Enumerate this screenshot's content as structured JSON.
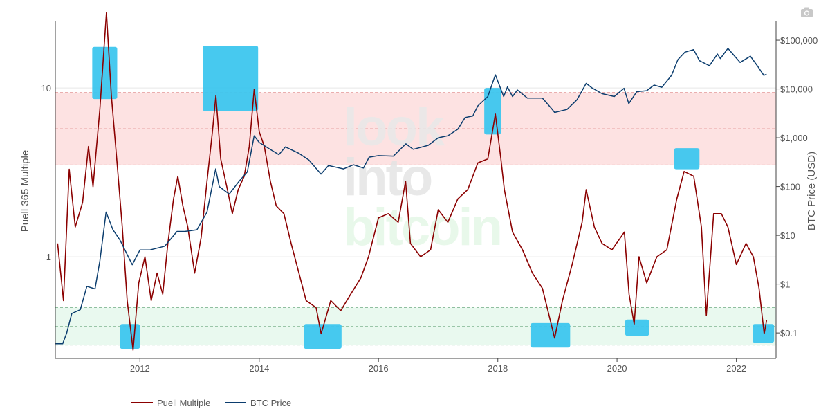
{
  "chart_data": {
    "type": "line",
    "title": "",
    "xlabel": "",
    "x_range": [
      "2010-08-01",
      "2022-09-01"
    ],
    "x_tick_labels": [
      "2012",
      "2014",
      "2016",
      "2018",
      "2020",
      "2022"
    ],
    "y_left": {
      "label": "Puell 365 Multiple",
      "scale": "log",
      "range": [
        0.25,
        25
      ],
      "tick_labels": [
        "1",
        "10"
      ],
      "tick_values": [
        1,
        10
      ]
    },
    "y_right": {
      "label": "BTC Price (USD)",
      "scale": "log",
      "range": [
        0.03,
        250000
      ],
      "tick_labels": [
        "$0.1",
        "$1",
        "$10",
        "$100",
        "$1,000",
        "$10,000",
        "$100,000"
      ],
      "tick_values": [
        0.1,
        1,
        10,
        100,
        1000,
        10000,
        100000
      ]
    },
    "bands": [
      {
        "name": "overbought",
        "y_from": 3.5,
        "y_to": 9.4,
        "color": "#fde2e2",
        "line_color": "#e7a3a3"
      },
      {
        "name": "oversold",
        "y_from": 0.3,
        "y_to": 0.5,
        "color": "#e9f9ef",
        "line_color": "#8fbf9f"
      }
    ],
    "series": [
      {
        "name": "Puell Multiple",
        "axis": "left",
        "color": "#8b0000",
        "points": [
          [
            "2010-08-15",
            1.2
          ],
          [
            "2010-09-20",
            0.55
          ],
          [
            "2010-10-25",
            3.3
          ],
          [
            "2010-12-01",
            1.5
          ],
          [
            "2011-01-15",
            2.1
          ],
          [
            "2011-02-20",
            4.5
          ],
          [
            "2011-03-20",
            2.6
          ],
          [
            "2011-05-01",
            7.5
          ],
          [
            "2011-06-10",
            28.0
          ],
          [
            "2011-07-10",
            9.0
          ],
          [
            "2011-08-15",
            3.5
          ],
          [
            "2011-09-15",
            1.5
          ],
          [
            "2011-10-15",
            0.55
          ],
          [
            "2011-11-20",
            0.28
          ],
          [
            "2011-12-25",
            0.7
          ],
          [
            "2012-02-01",
            1.0
          ],
          [
            "2012-03-10",
            0.55
          ],
          [
            "2012-04-15",
            0.8
          ],
          [
            "2012-05-20",
            0.6
          ],
          [
            "2012-06-20",
            1.2
          ],
          [
            "2012-07-25",
            2.2
          ],
          [
            "2012-08-20",
            3.0
          ],
          [
            "2012-09-20",
            2.0
          ],
          [
            "2012-10-20",
            1.5
          ],
          [
            "2012-12-01",
            0.8
          ],
          [
            "2013-01-10",
            1.3
          ],
          [
            "2013-02-15",
            2.8
          ],
          [
            "2013-03-20",
            5.5
          ],
          [
            "2013-04-10",
            9.0
          ],
          [
            "2013-05-10",
            3.8
          ],
          [
            "2013-06-20",
            2.5
          ],
          [
            "2013-07-20",
            1.8
          ],
          [
            "2013-08-25",
            2.5
          ],
          [
            "2013-10-01",
            3.0
          ],
          [
            "2013-11-01",
            4.5
          ],
          [
            "2013-12-01",
            9.8
          ],
          [
            "2014-01-01",
            5.5
          ],
          [
            "2014-02-01",
            4.5
          ],
          [
            "2014-03-10",
            2.8
          ],
          [
            "2014-04-15",
            2.0
          ],
          [
            "2014-06-01",
            1.8
          ],
          [
            "2014-07-15",
            1.2
          ],
          [
            "2014-09-01",
            0.8
          ],
          [
            "2014-10-15",
            0.55
          ],
          [
            "2014-12-15",
            0.5
          ],
          [
            "2015-01-15",
            0.35
          ],
          [
            "2015-03-15",
            0.55
          ],
          [
            "2015-05-15",
            0.48
          ],
          [
            "2015-07-15",
            0.6
          ],
          [
            "2015-09-15",
            0.75
          ],
          [
            "2015-11-01",
            1.0
          ],
          [
            "2016-01-01",
            1.7
          ],
          [
            "2016-03-01",
            1.8
          ],
          [
            "2016-05-01",
            1.6
          ],
          [
            "2016-06-15",
            2.8
          ],
          [
            "2016-07-15",
            1.2
          ],
          [
            "2016-09-15",
            1.0
          ],
          [
            "2016-11-15",
            1.1
          ],
          [
            "2017-01-01",
            1.9
          ],
          [
            "2017-03-01",
            1.6
          ],
          [
            "2017-05-01",
            2.2
          ],
          [
            "2017-07-01",
            2.5
          ],
          [
            "2017-09-01",
            3.6
          ],
          [
            "2017-11-01",
            3.8
          ],
          [
            "2017-12-17",
            7.0
          ],
          [
            "2018-01-20",
            3.8
          ],
          [
            "2018-02-10",
            2.5
          ],
          [
            "2018-04-01",
            1.4
          ],
          [
            "2018-06-01",
            1.1
          ],
          [
            "2018-08-01",
            0.8
          ],
          [
            "2018-10-01",
            0.65
          ],
          [
            "2018-12-15",
            0.33
          ],
          [
            "2019-02-01",
            0.55
          ],
          [
            "2019-04-01",
            0.9
          ],
          [
            "2019-06-01",
            1.6
          ],
          [
            "2019-06-26",
            2.5
          ],
          [
            "2019-08-15",
            1.5
          ],
          [
            "2019-10-01",
            1.2
          ],
          [
            "2019-12-01",
            1.1
          ],
          [
            "2020-02-15",
            1.4
          ],
          [
            "2020-03-15",
            0.6
          ],
          [
            "2020-04-15",
            0.4
          ],
          [
            "2020-05-15",
            1.0
          ],
          [
            "2020-07-01",
            0.7
          ],
          [
            "2020-09-01",
            1.0
          ],
          [
            "2020-11-01",
            1.1
          ],
          [
            "2021-01-01",
            2.2
          ],
          [
            "2021-02-15",
            3.2
          ],
          [
            "2021-04-15",
            3.0
          ],
          [
            "2021-06-01",
            1.5
          ],
          [
            "2021-07-01",
            0.45
          ],
          [
            "2021-08-15",
            1.8
          ],
          [
            "2021-10-01",
            1.8
          ],
          [
            "2021-11-10",
            1.5
          ],
          [
            "2022-01-01",
            0.9
          ],
          [
            "2022-03-01",
            1.2
          ],
          [
            "2022-04-15",
            1.0
          ],
          [
            "2022-05-20",
            0.65
          ],
          [
            "2022-06-20",
            0.35
          ],
          [
            "2022-07-05",
            0.42
          ]
        ]
      },
      {
        "name": "BTC Price",
        "axis": "right",
        "color": "#0b3d6e",
        "points": [
          [
            "2010-08-01",
            0.06
          ],
          [
            "2010-09-15",
            0.06
          ],
          [
            "2010-10-10",
            0.1
          ],
          [
            "2010-11-10",
            0.25
          ],
          [
            "2011-01-01",
            0.3
          ],
          [
            "2011-02-10",
            0.9
          ],
          [
            "2011-04-01",
            0.8
          ],
          [
            "2011-05-01",
            3.0
          ],
          [
            "2011-06-08",
            30.0
          ],
          [
            "2011-07-20",
            13.0
          ],
          [
            "2011-09-01",
            8.0
          ],
          [
            "2011-11-15",
            2.5
          ],
          [
            "2012-01-01",
            5.0
          ],
          [
            "2012-03-01",
            5.0
          ],
          [
            "2012-06-01",
            6.0
          ],
          [
            "2012-08-15",
            12.0
          ],
          [
            "2012-10-01",
            12.0
          ],
          [
            "2012-12-15",
            13.0
          ],
          [
            "2013-02-15",
            30.0
          ],
          [
            "2013-04-09",
            230.0
          ],
          [
            "2013-05-01",
            100.0
          ],
          [
            "2013-07-01",
            70.0
          ],
          [
            "2013-09-01",
            130.0
          ],
          [
            "2013-10-20",
            200.0
          ],
          [
            "2013-12-01",
            1100.0
          ],
          [
            "2014-01-01",
            800.0
          ],
          [
            "2014-03-01",
            600.0
          ],
          [
            "2014-05-01",
            450.0
          ],
          [
            "2014-06-10",
            650.0
          ],
          [
            "2014-09-01",
            480.0
          ],
          [
            "2014-11-01",
            350.0
          ],
          [
            "2015-01-14",
            180.0
          ],
          [
            "2015-03-01",
            270.0
          ],
          [
            "2015-06-01",
            230.0
          ],
          [
            "2015-08-01",
            280.0
          ],
          [
            "2015-10-01",
            240.0
          ],
          [
            "2015-11-05",
            400.0
          ],
          [
            "2016-01-01",
            430.0
          ],
          [
            "2016-04-01",
            420.0
          ],
          [
            "2016-06-17",
            750.0
          ],
          [
            "2016-08-01",
            580.0
          ],
          [
            "2016-11-01",
            700.0
          ],
          [
            "2017-01-01",
            1000.0
          ],
          [
            "2017-03-01",
            1100.0
          ],
          [
            "2017-05-01",
            1500.0
          ],
          [
            "2017-06-15",
            2600.0
          ],
          [
            "2017-08-01",
            2800.0
          ],
          [
            "2017-09-01",
            4500.0
          ],
          [
            "2017-11-01",
            7000.0
          ],
          [
            "2017-12-17",
            19500.0
          ],
          [
            "2018-02-06",
            7000.0
          ],
          [
            "2018-03-01",
            11000.0
          ],
          [
            "2018-04-01",
            7000.0
          ],
          [
            "2018-05-01",
            9500.0
          ],
          [
            "2018-07-01",
            6500.0
          ],
          [
            "2018-10-01",
            6500.0
          ],
          [
            "2018-11-25",
            4000.0
          ],
          [
            "2018-12-15",
            3300.0
          ],
          [
            "2019-03-01",
            3800.0
          ],
          [
            "2019-05-01",
            6000.0
          ],
          [
            "2019-06-26",
            13000.0
          ],
          [
            "2019-08-01",
            10500.0
          ],
          [
            "2019-10-01",
            8000.0
          ],
          [
            "2019-12-15",
            7000.0
          ],
          [
            "2020-02-13",
            10300.0
          ],
          [
            "2020-03-13",
            5000.0
          ],
          [
            "2020-05-01",
            8800.0
          ],
          [
            "2020-07-01",
            9200.0
          ],
          [
            "2020-08-15",
            12000.0
          ],
          [
            "2020-10-01",
            10800.0
          ],
          [
            "2020-11-30",
            19000.0
          ],
          [
            "2021-01-08",
            40000.0
          ],
          [
            "2021-02-20",
            57000.0
          ],
          [
            "2021-04-14",
            64000.0
          ],
          [
            "2021-05-20",
            38000.0
          ],
          [
            "2021-07-20",
            30000.0
          ],
          [
            "2021-09-07",
            52000.0
          ],
          [
            "2021-09-25",
            42000.0
          ],
          [
            "2021-11-10",
            68000.0
          ],
          [
            "2022-01-24",
            35000.0
          ],
          [
            "2022-03-28",
            47000.0
          ],
          [
            "2022-05-12",
            29000.0
          ],
          [
            "2022-06-18",
            19000.0
          ],
          [
            "2022-07-05",
            20000.0
          ]
        ]
      }
    ],
    "highlights": [
      {
        "x_from": "2011-03-15",
        "x_to": "2011-08-15",
        "y_from": 8.6,
        "y_to": 17.5,
        "axis": "left"
      },
      {
        "x_from": "2013-01-20",
        "x_to": "2013-12-25",
        "y_from": 7.3,
        "y_to": 17.8,
        "axis": "left"
      },
      {
        "x_from": "2017-10-10",
        "x_to": "2018-01-20",
        "y_from": 5.3,
        "y_to": 10.0,
        "axis": "left"
      },
      {
        "x_from": "2020-12-15",
        "x_to": "2021-05-20",
        "y_from": 3.3,
        "y_to": 4.4,
        "axis": "left"
      },
      {
        "x_from": "2011-09-01",
        "x_to": "2012-01-01",
        "y_from": 0.285,
        "y_to": 0.4,
        "axis": "left"
      },
      {
        "x_from": "2014-10-01",
        "x_to": "2015-05-20",
        "y_from": 0.285,
        "y_to": 0.4,
        "axis": "left"
      },
      {
        "x_from": "2018-07-20",
        "x_to": "2019-03-20",
        "y_from": 0.29,
        "y_to": 0.405,
        "axis": "left"
      },
      {
        "x_from": "2020-02-20",
        "x_to": "2020-07-15",
        "y_from": 0.34,
        "y_to": 0.425,
        "axis": "left"
      },
      {
        "x_from": "2022-04-10",
        "x_to": "2022-08-20",
        "y_from": 0.31,
        "y_to": 0.4,
        "axis": "left"
      }
    ],
    "highlight_color": "#3dc6ee",
    "grid": true,
    "legend": {
      "position": "bottom-left"
    }
  },
  "watermark": {
    "line1": "look",
    "line2": "into",
    "line3": "bitcoin"
  },
  "toolbar": {
    "icon": "camera-icon"
  }
}
